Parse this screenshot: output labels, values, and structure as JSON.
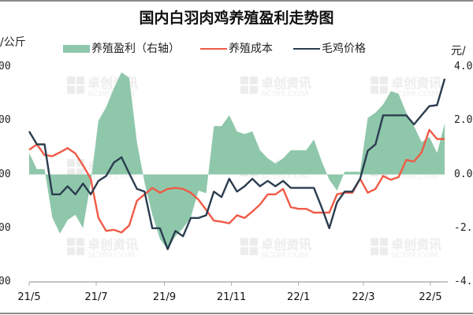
{
  "title": "国内白羽肉鸡养殖盈利走势图",
  "watermark": {
    "cn": "卓创资讯",
    "en": "SCI99.COM"
  },
  "colors": {
    "profit": "#8fc7ab",
    "cost": "#f05a46",
    "price": "#2b3d4f",
    "axis": "#b0b0b0"
  },
  "chart_data": {
    "type": "line",
    "title": "国内白羽肉鸡养殖盈利走势图",
    "legend_position": "top",
    "grid": false,
    "left_axis": {
      "unit": "元/公斤",
      "tick_labels": [
        "00",
        "00",
        "00",
        "00",
        "00"
      ],
      "ylim": [
        0,
        4
      ]
    },
    "right_axis": {
      "unit": "元/",
      "tick_labels": [
        "4.0",
        "2.0",
        "0.0",
        "-2.",
        "-4."
      ],
      "ylim": [
        -4,
        4
      ]
    },
    "x_tick_labels": [
      "21/5",
      "21/7",
      "21/9",
      "21/11",
      "22/1",
      "22/3",
      "22/5"
    ],
    "x_tick_dates": [
      "2021-05-01",
      "2021-07-01",
      "2021-09-01",
      "2021-11-01",
      "2022-01-01",
      "2022-03-01",
      "2022-05-01"
    ],
    "x": [
      "2021-05-01",
      "2021-05-08",
      "2021-05-15",
      "2021-05-22",
      "2021-05-29",
      "2021-06-05",
      "2021-06-12",
      "2021-06-19",
      "2021-06-26",
      "2021-07-03",
      "2021-07-10",
      "2021-07-17",
      "2021-07-24",
      "2021-07-31",
      "2021-08-07",
      "2021-08-14",
      "2021-08-21",
      "2021-08-28",
      "2021-09-04",
      "2021-09-11",
      "2021-09-18",
      "2021-09-25",
      "2021-10-02",
      "2021-10-09",
      "2021-10-16",
      "2021-10-23",
      "2021-10-30",
      "2021-11-06",
      "2021-11-13",
      "2021-11-20",
      "2021-11-27",
      "2021-12-04",
      "2021-12-11",
      "2021-12-18",
      "2021-12-25",
      "2022-01-01",
      "2022-01-08",
      "2022-01-15",
      "2022-01-22",
      "2022-01-29",
      "2022-02-05",
      "2022-02-12",
      "2022-02-19",
      "2022-02-26",
      "2022-03-05",
      "2022-03-12",
      "2022-03-19",
      "2022-03-26",
      "2022-04-02",
      "2022-04-09",
      "2022-04-16",
      "2022-04-23",
      "2022-04-30",
      "2022-05-07",
      "2022-05-14"
    ],
    "series": [
      {
        "name": "养殖盈利（右轴）",
        "type": "area",
        "axis": "right",
        "values": [
          0.8,
          0.2,
          0.2,
          -1.6,
          -2.2,
          -1.7,
          -1.5,
          -2.0,
          -0.3,
          2.0,
          2.5,
          3.2,
          3.8,
          3.6,
          1.2,
          -0.3,
          -1.5,
          -2.4,
          -2.8,
          -2.3,
          -2.0,
          -1.6,
          -0.6,
          -0.7,
          1.8,
          1.8,
          2.2,
          1.6,
          1.5,
          1.6,
          0.9,
          0.6,
          0.4,
          0.6,
          0.9,
          0.9,
          0.9,
          1.3,
          0.5,
          -0.2,
          -0.6,
          0.1,
          0.1,
          0.1,
          2.1,
          2.3,
          2.6,
          3.1,
          3.0,
          2.3,
          1.8,
          1.2,
          1.4,
          0.8,
          1.9
        ]
      },
      {
        "name": "养殖成本",
        "type": "line",
        "axis": "left",
        "values": [
          2.46,
          2.56,
          2.36,
          2.34,
          2.41,
          2.49,
          2.39,
          2.17,
          1.92,
          1.19,
          0.95,
          0.97,
          0.92,
          1.05,
          1.51,
          1.63,
          1.75,
          1.66,
          1.73,
          1.75,
          1.73,
          1.66,
          1.53,
          1.34,
          1.14,
          1.12,
          1.09,
          1.24,
          1.19,
          1.31,
          1.44,
          1.63,
          1.63,
          1.73,
          1.39,
          1.36,
          1.36,
          1.29,
          1.29,
          1.29,
          1.63,
          1.66,
          1.66,
          1.92,
          1.66,
          1.73,
          1.97,
          1.9,
          1.95,
          2.27,
          2.24,
          2.41,
          2.83,
          2.66,
          2.66
        ]
      },
      {
        "name": "毛鸡价格",
        "type": "line",
        "axis": "left",
        "values": [
          2.8,
          2.56,
          2.56,
          1.63,
          1.63,
          1.78,
          1.63,
          1.83,
          1.63,
          1.88,
          1.97,
          2.22,
          2.32,
          2.02,
          1.73,
          1.68,
          1.0,
          1.0,
          0.61,
          0.95,
          0.85,
          1.19,
          1.19,
          1.24,
          1.68,
          1.58,
          1.92,
          1.68,
          1.78,
          1.92,
          1.78,
          1.88,
          1.78,
          1.88,
          1.75,
          1.75,
          1.75,
          1.75,
          1.39,
          1.0,
          1.48,
          1.68,
          1.68,
          1.92,
          2.44,
          2.56,
          3.1,
          3.1,
          3.1,
          3.1,
          2.93,
          3.1,
          3.27,
          3.29,
          3.78
        ]
      }
    ]
  }
}
